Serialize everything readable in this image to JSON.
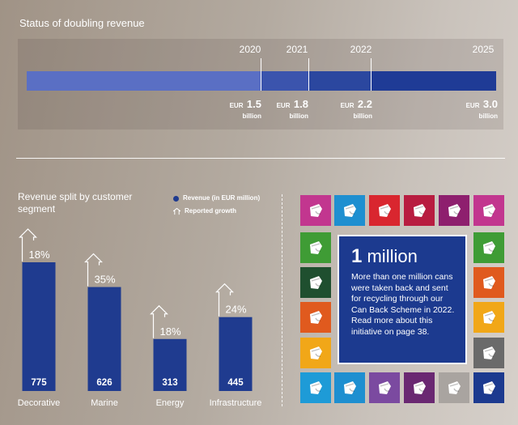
{
  "top": {
    "title": "Status of doubling revenue",
    "years": [
      "2020",
      "2021",
      "2022",
      "2025"
    ],
    "amounts": [
      {
        "currency": "EUR",
        "value": "1.5",
        "unit": "billion"
      },
      {
        "currency": "EUR",
        "value": "1.8",
        "unit": "billion"
      },
      {
        "currency": "EUR",
        "value": "2.2",
        "unit": "billion"
      },
      {
        "currency": "EUR",
        "value": "3.0",
        "unit": "billion"
      }
    ],
    "segment_colors": [
      "#5a6fc4",
      "#3b54ad",
      "#2b479f",
      "#1f3b96"
    ]
  },
  "chart_data": {
    "type": "bar",
    "title": "Revenue split by customer segment",
    "categories": [
      "Decorative",
      "Marine",
      "Energy",
      "Infrastructure"
    ],
    "series": [
      {
        "name": "Revenue (in EUR million)",
        "values": [
          775,
          626,
          313,
          445
        ]
      }
    ],
    "growth_name": "Reported growth",
    "growth": [
      "18%",
      "35%",
      "18%",
      "24%"
    ],
    "bar_color": "#1f3b8f",
    "ylim": [
      0,
      775
    ]
  },
  "legend": {
    "revenue_label": "Revenue (in EUR million)",
    "growth_label": "Reported growth"
  },
  "info": {
    "headline_number": "1",
    "headline_word": "million",
    "text": "More than one million cans were taken back and sent for recycling through our Can Back Scheme in 2022. Read more about this initiative on page 38."
  },
  "tiles": {
    "icon": "paint-can-icon",
    "colors": {
      "top": [
        "#c2368f",
        "#1e8fd0",
        "#d9262f",
        "#b81c40",
        "#8e1f6e",
        "#c2368f"
      ],
      "left": [
        "#3f9c35",
        "#1f4f2f",
        "#e05a1e",
        "#f1a718"
      ],
      "right": [
        "#3f9c35",
        "#e05a1e",
        "#f1a718",
        "#6a6a6a"
      ],
      "bottom": [
        "#1e9bd7",
        "#1e8fd0",
        "#7b4aa0",
        "#6a2872",
        "#a9a4a0",
        "#1c3a8f"
      ]
    }
  }
}
